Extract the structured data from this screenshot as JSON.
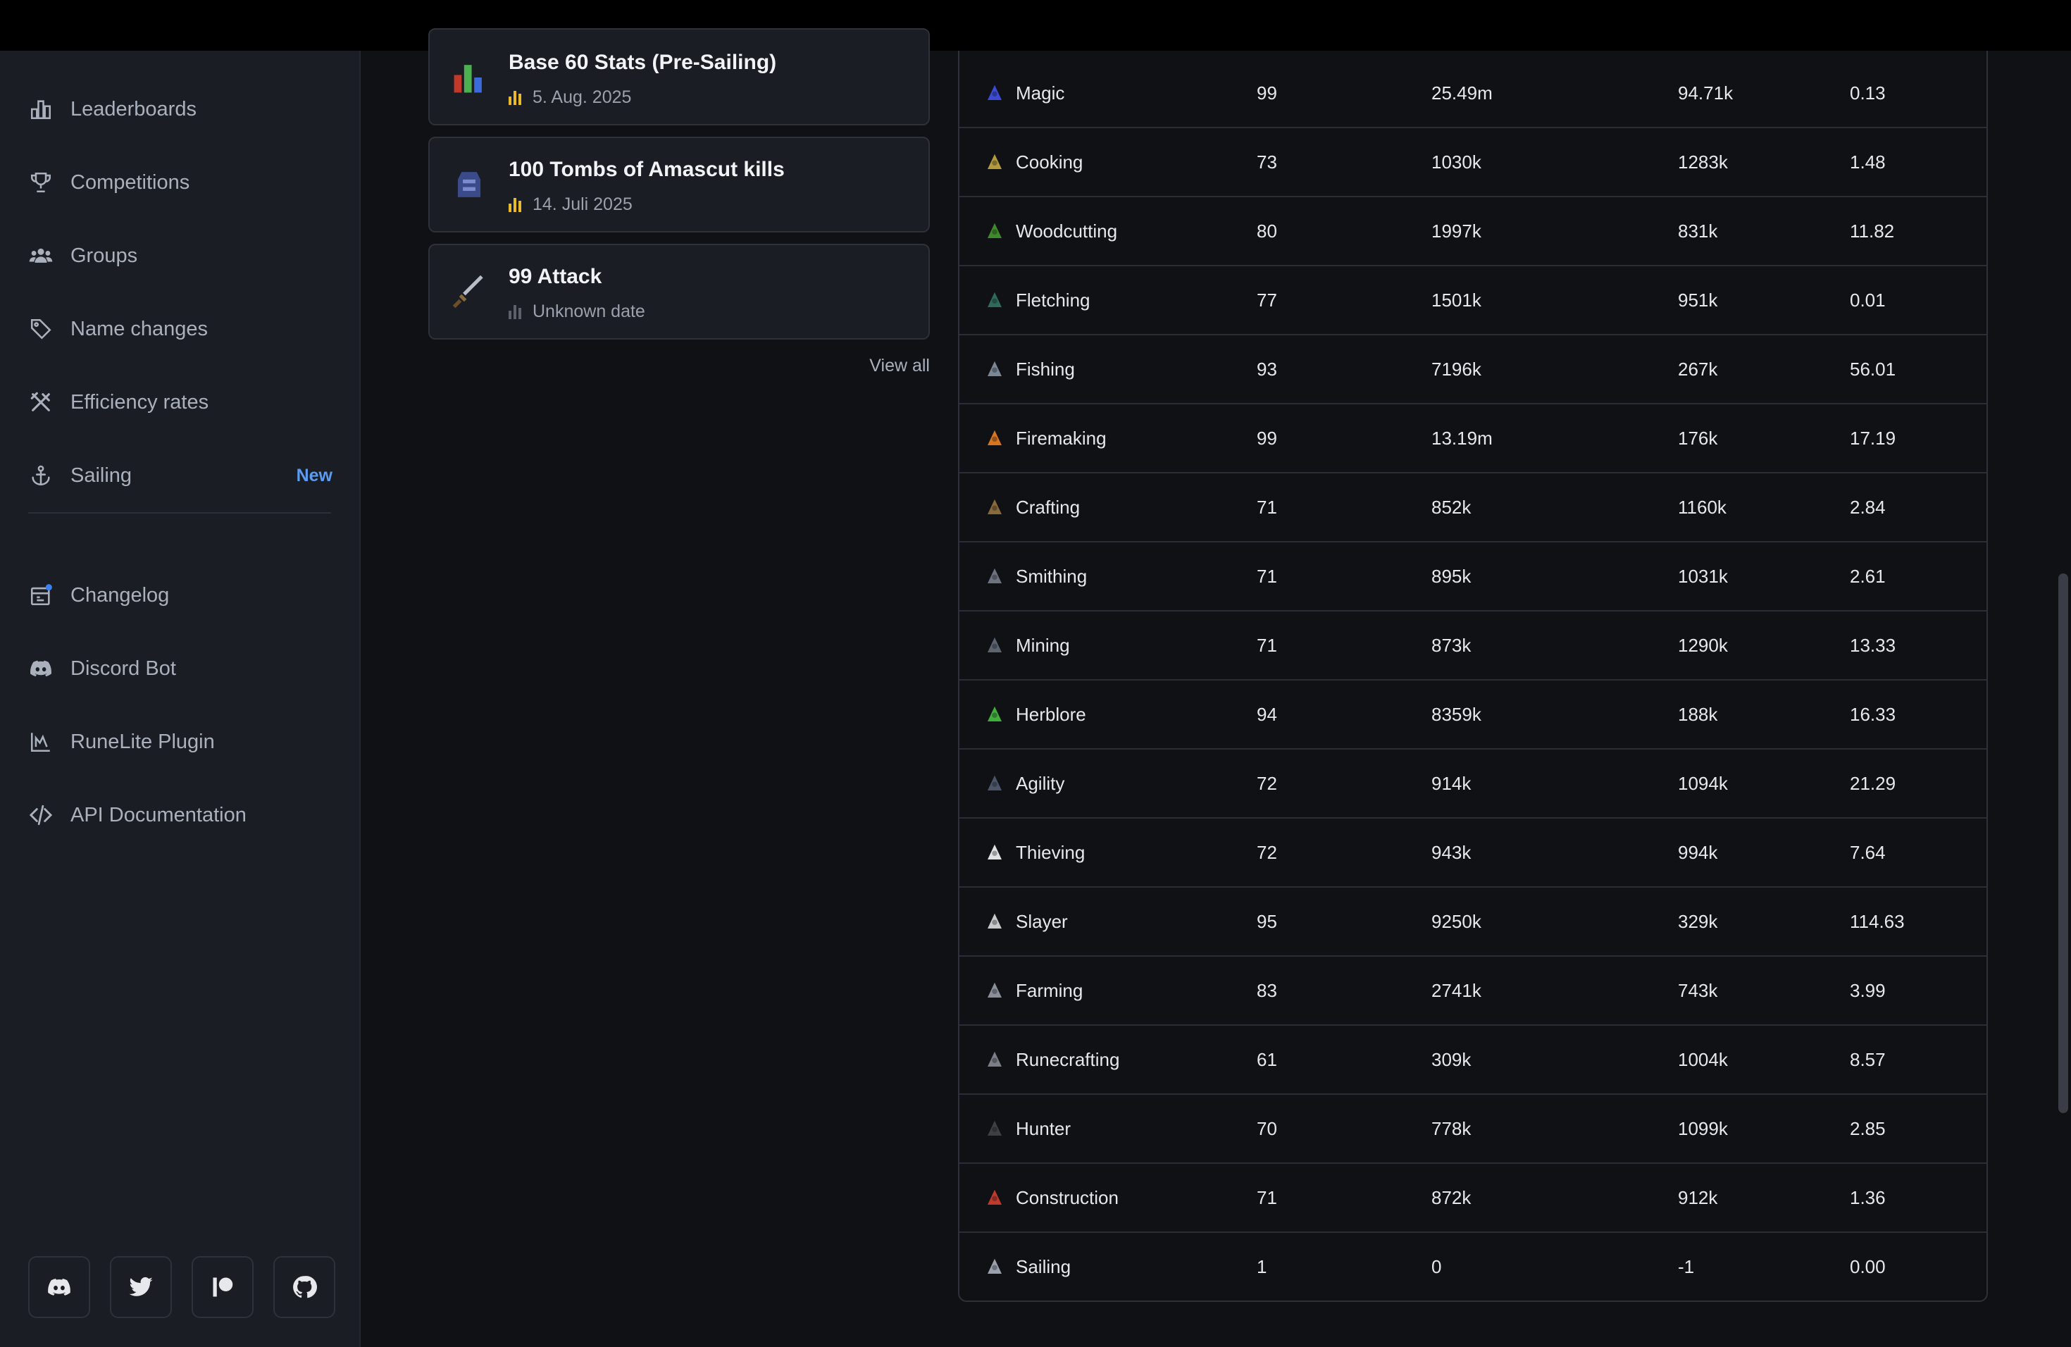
{
  "sidebar": {
    "items": [
      {
        "label": "Leaderboards",
        "icon": "bar-chart-icon"
      },
      {
        "label": "Competitions",
        "icon": "trophy-icon"
      },
      {
        "label": "Groups",
        "icon": "users-icon"
      },
      {
        "label": "Name changes",
        "icon": "tag-icon"
      },
      {
        "label": "Efficiency rates",
        "icon": "tools-icon"
      },
      {
        "label": "Sailing",
        "icon": "anchor-icon",
        "badge": "New"
      },
      {
        "label": "Changelog",
        "icon": "calendar-icon"
      },
      {
        "label": "Discord Bot",
        "icon": "discord-icon"
      },
      {
        "label": "RuneLite Plugin",
        "icon": "runelite-icon"
      },
      {
        "label": "API Documentation",
        "icon": "code-icon"
      }
    ],
    "social": [
      "discord-icon",
      "twitter-icon",
      "patreon-icon",
      "github-icon"
    ]
  },
  "achievements": {
    "items": [
      {
        "title": "Base 60 Stats (Pre-Sailing)",
        "date": "5. Aug. 2025",
        "icon": "base-stats-icon"
      },
      {
        "title": "100 Tombs of Amascut kills",
        "date": "14. Juli 2025",
        "icon": "tombs-icon"
      },
      {
        "title": "99 Attack",
        "date": "Unknown date",
        "icon": "attack-sword-icon"
      }
    ],
    "view_all": "View all"
  },
  "skills": {
    "rows": [
      {
        "name": "Magic",
        "level": "99",
        "xp": "25.49m",
        "rank": "94.71k",
        "ehp": "0.13",
        "color": "#3b4bd8"
      },
      {
        "name": "Cooking",
        "level": "73",
        "xp": "1030k",
        "rank": "1283k",
        "ehp": "1.48",
        "color": "#b49a3c"
      },
      {
        "name": "Woodcutting",
        "level": "80",
        "xp": "1997k",
        "rank": "831k",
        "ehp": "11.82",
        "color": "#3f8a2a"
      },
      {
        "name": "Fletching",
        "level": "77",
        "xp": "1501k",
        "rank": "951k",
        "ehp": "0.01",
        "color": "#2f6b5a"
      },
      {
        "name": "Fishing",
        "level": "93",
        "xp": "7196k",
        "rank": "267k",
        "ehp": "56.01",
        "color": "#7a8796"
      },
      {
        "name": "Firemaking",
        "level": "99",
        "xp": "13.19m",
        "rank": "176k",
        "ehp": "17.19",
        "color": "#d9741f"
      },
      {
        "name": "Crafting",
        "level": "71",
        "xp": "852k",
        "rank": "1160k",
        "ehp": "2.84",
        "color": "#8a6a3a"
      },
      {
        "name": "Smithing",
        "level": "71",
        "xp": "895k",
        "rank": "1031k",
        "ehp": "2.61",
        "color": "#6d7380"
      },
      {
        "name": "Mining",
        "level": "71",
        "xp": "873k",
        "rank": "1290k",
        "ehp": "13.33",
        "color": "#5c6470"
      },
      {
        "name": "Herblore",
        "level": "94",
        "xp": "8359k",
        "rank": "188k",
        "ehp": "16.33",
        "color": "#3fae3a"
      },
      {
        "name": "Agility",
        "level": "72",
        "xp": "914k",
        "rank": "1094k",
        "ehp": "21.29",
        "color": "#4a5568"
      },
      {
        "name": "Thieving",
        "level": "72",
        "xp": "943k",
        "rank": "994k",
        "ehp": "7.64",
        "color": "#e2e2e2"
      },
      {
        "name": "Slayer",
        "level": "95",
        "xp": "9250k",
        "rank": "329k",
        "ehp": "114.63",
        "color": "#c9c9c9"
      },
      {
        "name": "Farming",
        "level": "83",
        "xp": "2741k",
        "rank": "743k",
        "ehp": "3.99",
        "color": "#8a8f99"
      },
      {
        "name": "Runecrafting",
        "level": "61",
        "xp": "309k",
        "rank": "1004k",
        "ehp": "8.57",
        "color": "#7b7f88"
      },
      {
        "name": "Hunter",
        "level": "70",
        "xp": "778k",
        "rank": "1099k",
        "ehp": "2.85",
        "color": "#3d3f45"
      },
      {
        "name": "Construction",
        "level": "71",
        "xp": "872k",
        "rank": "912k",
        "ehp": "1.36",
        "color": "#c0392b"
      },
      {
        "name": "Sailing",
        "level": "1",
        "xp": "0",
        "rank": "-1",
        "ehp": "0.00",
        "color": "#9aa1ad"
      }
    ]
  }
}
